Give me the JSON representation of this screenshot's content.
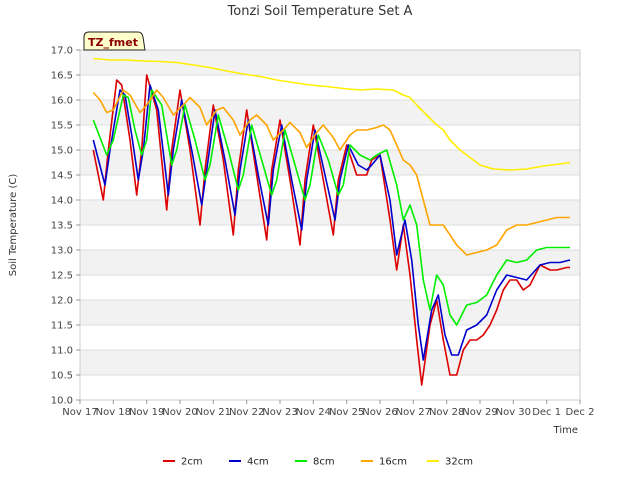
{
  "chart_data": {
    "type": "line",
    "title": "Tonzi Soil Temperature Set A",
    "xlabel": "Time",
    "ylabel": "Soil Temperature (C)",
    "badge": "TZ_fmet",
    "ylim": [
      10.0,
      17.0
    ],
    "yticks": [
      "10.0",
      "10.5",
      "11.0",
      "11.5",
      "12.0",
      "12.5",
      "13.0",
      "13.5",
      "14.0",
      "14.5",
      "15.0",
      "15.5",
      "16.0",
      "16.5",
      "17.0"
    ],
    "xlim": [
      0,
      15
    ],
    "xticks": [
      "Nov 17",
      "Nov 18",
      "Nov 19",
      "Nov 20",
      "Nov 21",
      "Nov 22",
      "Nov 23",
      "Nov 24",
      "Nov 25",
      "Nov 26",
      "Nov 27",
      "Nov 28",
      "Nov 29",
      "Nov 30",
      "Dec 1",
      "Dec 2"
    ],
    "series": [
      {
        "name": "2cm",
        "color": "#dd0000",
        "x": [
          0.4,
          0.7,
          0.85,
          1.1,
          1.25,
          1.5,
          1.7,
          1.85,
          2.0,
          2.3,
          2.6,
          2.75,
          3.0,
          3.3,
          3.6,
          3.75,
          4.0,
          4.3,
          4.6,
          4.75,
          5.0,
          5.3,
          5.6,
          5.75,
          6.0,
          6.3,
          6.6,
          6.75,
          7.0,
          7.3,
          7.6,
          7.75,
          8.0,
          8.3,
          8.6,
          8.75,
          9.0,
          9.3,
          9.5,
          9.7,
          9.9,
          10.1,
          10.25,
          10.5,
          10.7,
          10.9,
          11.1,
          11.3,
          11.5,
          11.7,
          11.9,
          12.1,
          12.3,
          12.5,
          12.7,
          12.9,
          13.1,
          13.3,
          13.5,
          13.8,
          14.1,
          14.3,
          14.6,
          14.7
        ],
        "y": [
          15.0,
          14.0,
          15.0,
          16.4,
          16.3,
          15.2,
          14.1,
          15.0,
          16.5,
          15.8,
          13.8,
          15.0,
          16.2,
          15.0,
          13.5,
          14.6,
          15.9,
          14.8,
          13.3,
          14.6,
          15.8,
          14.5,
          13.2,
          14.6,
          15.6,
          14.4,
          13.1,
          14.4,
          15.5,
          14.4,
          13.3,
          14.4,
          15.1,
          14.5,
          14.5,
          14.8,
          14.9,
          13.6,
          12.6,
          13.5,
          12.5,
          11.2,
          10.3,
          11.5,
          12.0,
          11.2,
          10.5,
          10.5,
          11.0,
          11.2,
          11.2,
          11.3,
          11.5,
          11.8,
          12.2,
          12.4,
          12.4,
          12.2,
          12.3,
          12.7,
          12.6,
          12.6,
          12.65,
          12.65
        ]
      },
      {
        "name": "4cm",
        "color": "#0000cc",
        "x": [
          0.4,
          0.75,
          0.9,
          1.2,
          1.35,
          1.55,
          1.75,
          1.9,
          2.1,
          2.35,
          2.65,
          2.8,
          3.05,
          3.35,
          3.65,
          3.8,
          4.05,
          4.35,
          4.65,
          4.8,
          5.05,
          5.35,
          5.65,
          5.8,
          6.05,
          6.35,
          6.65,
          6.8,
          7.05,
          7.35,
          7.65,
          7.8,
          8.05,
          8.35,
          8.6,
          8.75,
          9.0,
          9.3,
          9.5,
          9.75,
          9.95,
          10.15,
          10.3,
          10.55,
          10.75,
          10.95,
          11.15,
          11.35,
          11.6,
          11.9,
          12.2,
          12.5,
          12.8,
          13.1,
          13.4,
          13.8,
          14.1,
          14.4,
          14.7
        ],
        "y": [
          15.2,
          14.3,
          15.0,
          16.2,
          16.1,
          15.3,
          14.4,
          15.0,
          16.3,
          15.8,
          14.1,
          15.0,
          16.0,
          15.0,
          13.9,
          14.6,
          15.8,
          14.8,
          13.7,
          14.6,
          15.6,
          14.5,
          13.5,
          14.6,
          15.5,
          14.4,
          13.4,
          14.4,
          15.4,
          14.5,
          13.6,
          14.4,
          15.1,
          14.7,
          14.6,
          14.7,
          14.9,
          14.0,
          12.9,
          13.6,
          12.8,
          11.5,
          10.8,
          11.8,
          12.1,
          11.3,
          10.9,
          10.9,
          11.4,
          11.5,
          11.7,
          12.2,
          12.5,
          12.45,
          12.4,
          12.7,
          12.75,
          12.75,
          12.8
        ]
      },
      {
        "name": "8cm",
        "color": "#00ee00",
        "x": [
          0.4,
          0.8,
          1.0,
          1.3,
          1.45,
          1.65,
          1.85,
          2.0,
          2.15,
          2.45,
          2.75,
          2.9,
          3.15,
          3.45,
          3.75,
          3.9,
          4.15,
          4.45,
          4.75,
          4.9,
          5.15,
          5.45,
          5.75,
          5.9,
          6.15,
          6.45,
          6.75,
          6.9,
          7.15,
          7.45,
          7.75,
          7.9,
          8.1,
          8.4,
          8.7,
          8.9,
          9.2,
          9.5,
          9.7,
          9.9,
          10.1,
          10.3,
          10.5,
          10.7,
          10.9,
          11.1,
          11.3,
          11.6,
          11.9,
          12.2,
          12.5,
          12.8,
          13.1,
          13.4,
          13.7,
          14.0,
          14.3,
          14.7
        ],
        "y": [
          15.6,
          14.9,
          15.2,
          16.1,
          16.05,
          15.4,
          14.9,
          15.2,
          16.2,
          15.9,
          14.7,
          15.0,
          15.9,
          15.2,
          14.4,
          14.7,
          15.7,
          15.0,
          14.2,
          14.5,
          15.5,
          14.8,
          14.1,
          14.4,
          15.4,
          14.7,
          14.0,
          14.3,
          15.3,
          14.8,
          14.1,
          14.3,
          15.1,
          14.9,
          14.8,
          14.9,
          15.0,
          14.3,
          13.6,
          13.9,
          13.5,
          12.4,
          11.8,
          12.5,
          12.3,
          11.7,
          11.5,
          11.9,
          11.95,
          12.1,
          12.5,
          12.8,
          12.75,
          12.8,
          13.0,
          13.05,
          13.05,
          13.05
        ]
      },
      {
        "name": "16cm",
        "color": "#ffa500",
        "x": [
          0.4,
          0.6,
          0.8,
          1.0,
          1.3,
          1.5,
          1.8,
          2.0,
          2.3,
          2.5,
          2.8,
          3.1,
          3.3,
          3.6,
          3.8,
          4.1,
          4.3,
          4.6,
          4.8,
          5.1,
          5.3,
          5.6,
          5.8,
          6.1,
          6.3,
          6.6,
          6.8,
          7.1,
          7.3,
          7.6,
          7.8,
          8.1,
          8.3,
          8.6,
          8.9,
          9.1,
          9.3,
          9.5,
          9.7,
          9.9,
          10.1,
          10.3,
          10.5,
          10.7,
          10.9,
          11.1,
          11.3,
          11.6,
          11.9,
          12.2,
          12.5,
          12.8,
          13.1,
          13.4,
          13.7,
          14.0,
          14.3,
          14.7
        ],
        "y": [
          16.15,
          16.0,
          15.75,
          15.8,
          16.2,
          16.1,
          15.75,
          15.9,
          16.2,
          16.05,
          15.7,
          15.9,
          16.05,
          15.85,
          15.5,
          15.8,
          15.85,
          15.6,
          15.3,
          15.6,
          15.7,
          15.5,
          15.2,
          15.4,
          15.55,
          15.35,
          15.05,
          15.35,
          15.5,
          15.25,
          15.0,
          15.3,
          15.4,
          15.4,
          15.45,
          15.5,
          15.4,
          15.1,
          14.8,
          14.7,
          14.5,
          14.0,
          13.5,
          13.5,
          13.5,
          13.3,
          13.1,
          12.9,
          12.95,
          13.0,
          13.1,
          13.4,
          13.5,
          13.5,
          13.55,
          13.6,
          13.65,
          13.65
        ]
      },
      {
        "name": "32cm",
        "color": "#ffee00",
        "x": [
          0.4,
          0.9,
          1.4,
          1.9,
          2.4,
          2.9,
          3.4,
          3.9,
          4.4,
          4.9,
          5.4,
          5.9,
          6.4,
          6.9,
          7.4,
          7.9,
          8.4,
          8.9,
          9.4,
          9.7,
          9.9,
          10.1,
          10.4,
          10.7,
          10.9,
          11.1,
          11.4,
          11.7,
          12.0,
          12.4,
          12.9,
          13.4,
          13.9,
          14.4,
          14.7
        ],
        "y": [
          16.83,
          16.8,
          16.8,
          16.78,
          16.77,
          16.75,
          16.7,
          16.65,
          16.58,
          16.52,
          16.47,
          16.4,
          16.35,
          16.3,
          16.27,
          16.23,
          16.2,
          16.22,
          16.2,
          16.1,
          16.05,
          15.9,
          15.7,
          15.5,
          15.4,
          15.2,
          15.0,
          14.85,
          14.7,
          14.62,
          14.6,
          14.62,
          14.68,
          14.72,
          14.75
        ]
      }
    ],
    "legend_position": "bottom-center",
    "grid": true
  }
}
